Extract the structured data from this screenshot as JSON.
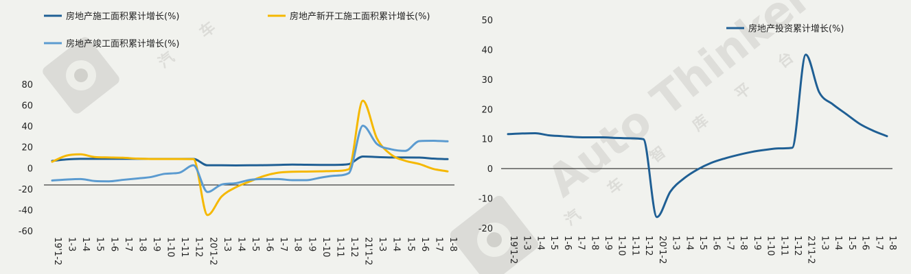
{
  "chart_data": [
    {
      "type": "line",
      "x": [
        "19'1-2",
        "1-3",
        "1-4",
        "1-5",
        "1-6",
        "1-7",
        "1-8",
        "1-9",
        "1-10",
        "1-11",
        "1-12",
        "20'1-2",
        "1-3",
        "1-4",
        "1-5",
        "1-6",
        "1-7",
        "1-8",
        "1-9",
        "1-10",
        "1-11",
        "1-12",
        "21'1-2",
        "1-3",
        "1-4",
        "1-5",
        "1-6",
        "1-7",
        "1-8"
      ],
      "x_tick_labels": [
        "19'1-2",
        "1-3",
        "1-4",
        "1-5",
        "1-6",
        "1-7",
        "1-8",
        "1-9",
        "1-10",
        "1-11",
        "1-12",
        "20'1-2",
        "1-3",
        "1-4",
        "1-5",
        "1-6",
        "1-7",
        "1-8",
        "1-9",
        "1-10",
        "1-11",
        "1-12",
        "21'1-2",
        "1-3",
        "1-4",
        "1-5",
        "1-6",
        "1-7",
        "1-8"
      ],
      "ylim": [
        -60,
        80
      ],
      "y_ticks": [
        80,
        60,
        40,
        20,
        0,
        -20,
        -40,
        -60
      ],
      "legend_position": "top",
      "series": [
        {
          "name": "房地产施工面积累计增长(%)",
          "color": "#1f5f94",
          "values": [
            6.8,
            8.2,
            8.8,
            8.8,
            8.8,
            8.8,
            8.8,
            8.7,
            8.7,
            8.7,
            8.7,
            2.6,
            2.6,
            2.5,
            2.6,
            2.7,
            3.0,
            3.3,
            3.1,
            3.0,
            3.0,
            3.7,
            11.0,
            10.5,
            10.1,
            10.1,
            10.0,
            9.0,
            8.5
          ]
        },
        {
          "name": "房地产新开工施工面积累计增长(%)",
          "color": "#f5b800",
          "values": [
            6.0,
            11.8,
            13.1,
            10.5,
            10.1,
            9.8,
            9.0,
            8.6,
            8.6,
            8.6,
            8.5,
            -44.9,
            -27.2,
            -18.4,
            -12.8,
            -7.6,
            -4.5,
            -3.6,
            -3.4,
            -3.2,
            -2.8,
            -1.2,
            64.3,
            28.2,
            12.8,
            6.9,
            3.8,
            -0.9,
            -3.2
          ]
        },
        {
          "name": "房地产竣工面积累计增长(%)",
          "color": "#5b9bd0",
          "values": [
            -11.9,
            -11.0,
            -10.5,
            -12.4,
            -12.7,
            -11.3,
            -10.0,
            -8.6,
            -5.5,
            -4.5,
            2.6,
            -22.9,
            -15.8,
            -14.5,
            -11.3,
            -10.5,
            -10.5,
            -11.6,
            -11.6,
            -9.2,
            -7.3,
            -4.9,
            40.4,
            22.9,
            17.9,
            16.4,
            25.7,
            26.0,
            25.5
          ]
        }
      ]
    },
    {
      "type": "line",
      "x": [
        "19'1-2",
        "1-3",
        "1-4",
        "1-5",
        "1-6",
        "1-7",
        "1-8",
        "1-9",
        "1-10",
        "1-11",
        "1-12",
        "20'1-2",
        "1-3",
        "1-4",
        "1-5",
        "1-6",
        "1-7",
        "1-8",
        "1-9",
        "1-10",
        "1-11",
        "1-12",
        "21'1-2",
        "1-3",
        "1-4",
        "1-5",
        "1-6",
        "1-7",
        "1-8"
      ],
      "x_tick_labels": [
        "19'1-2",
        "1-3",
        "1-4",
        "1-5",
        "1-6",
        "1-7",
        "1-8",
        "1-9",
        "1-10",
        "1-11",
        "1-12",
        "20'1-2",
        "1-3",
        "1-4",
        "1-5",
        "1-6",
        "1-7",
        "1-8",
        "1-9",
        "1-10",
        "1-11",
        "1-12",
        "21'1-2",
        "1-3",
        "1-4",
        "1-5",
        "1-6",
        "1-7",
        "1-8"
      ],
      "ylim": [
        -20,
        50
      ],
      "y_ticks": [
        50,
        40,
        30,
        20,
        10,
        0,
        -10,
        -20
      ],
      "legend_position": "top-right",
      "series": [
        {
          "name": "房地产投资累计增长(%)",
          "color": "#1f5f94",
          "values": [
            11.6,
            11.8,
            11.9,
            11.2,
            10.9,
            10.6,
            10.5,
            10.5,
            10.3,
            10.2,
            9.9,
            -16.3,
            -7.7,
            -3.3,
            -0.3,
            1.9,
            3.4,
            4.6,
            5.6,
            6.3,
            6.8,
            7.0,
            38.3,
            25.6,
            21.6,
            18.3,
            15.0,
            12.7,
            10.9
          ]
        }
      ]
    }
  ],
  "watermark": {
    "brand": "Auto Thinker",
    "slogan": [
      "汽",
      "车",
      "智",
      "库",
      "平",
      "台"
    ],
    "color": "#c9c9c4"
  }
}
